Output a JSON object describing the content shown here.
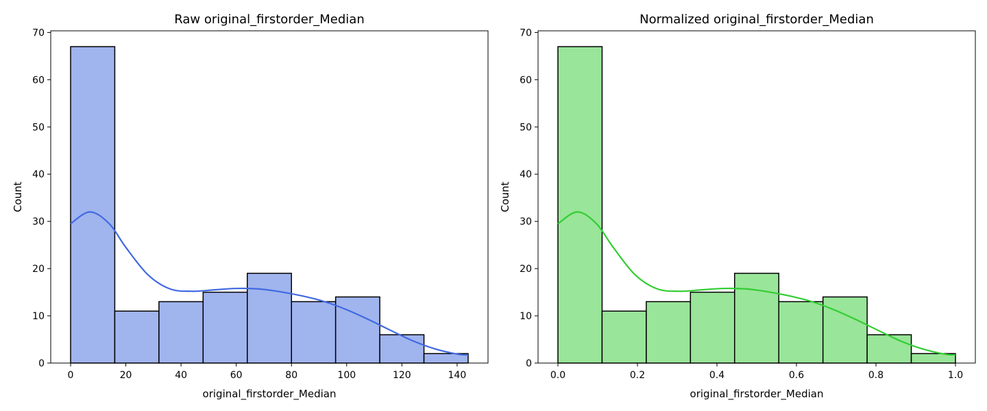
{
  "chart_data": [
    {
      "type": "bar",
      "title": "Raw original_firstorder_Median",
      "xlabel": "original_firstorder_Median",
      "ylabel": "Count",
      "color": "#4169e1",
      "bar_fill": "#a0b4ee",
      "edge_color": "#000000",
      "bin_edges": [
        0,
        16,
        32,
        48,
        64,
        80,
        96,
        112,
        128,
        144
      ],
      "values": [
        67,
        11,
        13,
        15,
        19,
        13,
        14,
        6,
        2
      ],
      "xlim": [
        -7.2,
        151.2
      ],
      "ylim": [
        0,
        70.35
      ],
      "xticks": [
        0,
        20,
        40,
        60,
        80,
        100,
        120,
        140
      ],
      "xtick_labels": [
        "0",
        "20",
        "40",
        "60",
        "80",
        "100",
        "120",
        "140"
      ],
      "yticks": [
        0,
        10,
        20,
        30,
        40,
        50,
        60,
        70
      ],
      "ytick_labels": [
        "0",
        "10",
        "20",
        "30",
        "40",
        "50",
        "60",
        "70"
      ],
      "kde": {
        "x": [
          0,
          7,
          14,
          20,
          28,
          36,
          44,
          52,
          60,
          68,
          76,
          84,
          92,
          100,
          108,
          116,
          124,
          132,
          140,
          144
        ],
        "y": [
          29.5,
          32,
          29.5,
          24.5,
          18.7,
          15.7,
          15.2,
          15.5,
          15.8,
          15.7,
          15.1,
          14.2,
          13.0,
          11.3,
          9.2,
          6.9,
          4.7,
          3.0,
          1.9,
          1.7
        ]
      },
      "grid": false
    },
    {
      "type": "bar",
      "title": "Normalized original_firstorder_Median",
      "xlabel": "original_firstorder_Median",
      "ylabel": "Count",
      "color": "#32cd32",
      "bar_fill": "#99e599",
      "edge_color": "#000000",
      "bin_edges": [
        0,
        0.1111,
        0.2222,
        0.3333,
        0.4444,
        0.5556,
        0.6667,
        0.7778,
        0.8889,
        1.0
      ],
      "values": [
        67,
        11,
        13,
        15,
        19,
        13,
        14,
        6,
        2
      ],
      "xlim": [
        -0.05,
        1.05
      ],
      "ylim": [
        0,
        70.35
      ],
      "xticks": [
        0,
        0.2,
        0.4,
        0.6,
        0.8,
        1.0
      ],
      "xtick_labels": [
        "0.0",
        "0.2",
        "0.4",
        "0.6",
        "0.8",
        "1.0"
      ],
      "yticks": [
        0,
        10,
        20,
        30,
        40,
        50,
        60,
        70
      ],
      "ytick_labels": [
        "0",
        "10",
        "20",
        "30",
        "40",
        "50",
        "60",
        "70"
      ],
      "kde": {
        "x": [
          0,
          0.049,
          0.097,
          0.139,
          0.194,
          0.25,
          0.306,
          0.361,
          0.417,
          0.472,
          0.528,
          0.583,
          0.639,
          0.694,
          0.75,
          0.806,
          0.861,
          0.917,
          0.972,
          1.0
        ],
        "y": [
          29.5,
          32,
          29.5,
          24.5,
          18.7,
          15.7,
          15.2,
          15.5,
          15.8,
          15.7,
          15.1,
          14.2,
          13.0,
          11.3,
          9.2,
          6.9,
          4.7,
          3.0,
          1.9,
          1.7
        ]
      },
      "grid": false
    }
  ]
}
